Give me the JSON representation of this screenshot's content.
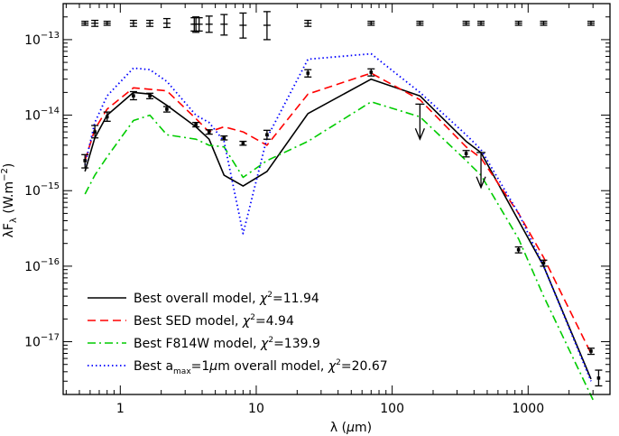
{
  "chart_data": {
    "type": "line",
    "title": "",
    "xlabel": "λ (μm)",
    "ylabel": "λF_λ (W.m^-2)",
    "xscale": "log",
    "yscale": "log",
    "xlim": [
      0.38,
      4000
    ],
    "ylim": [
      2e-18,
      3e-13
    ],
    "x_ticks": [
      {
        "v": 1,
        "label": "1"
      },
      {
        "v": 10,
        "label": "10"
      },
      {
        "v": 100,
        "label": "100"
      },
      {
        "v": 1000,
        "label": "1000"
      }
    ],
    "y_ticks": [
      {
        "v": 1e-17,
        "mant": "10",
        "exp": "−17"
      },
      {
        "v": 1e-16,
        "mant": "10",
        "exp": "−16"
      },
      {
        "v": 1e-15,
        "mant": "10",
        "exp": "−15"
      },
      {
        "v": 1e-14,
        "mant": "10",
        "exp": "−14"
      },
      {
        "v": 1e-13,
        "mant": "10",
        "exp": "−13"
      }
    ],
    "series": [
      {
        "name": "Best overall model",
        "chi_label": "χ",
        "chi_value": "=11.94",
        "color": "#000000",
        "dash": "",
        "x": [
          0.55,
          0.65,
          0.8,
          1.25,
          1.65,
          2.2,
          3.6,
          4.5,
          5.8,
          8.0,
          12,
          24,
          70,
          160,
          350,
          450,
          850,
          1300,
          2900
        ],
        "y": [
          1.8e-15,
          5e-15,
          1e-14,
          2e-14,
          1.9e-14,
          1.35e-14,
          7e-15,
          4.8e-15,
          1.6e-15,
          1.15e-15,
          1.8e-15,
          1.05e-14,
          3e-14,
          1.8e-14,
          4.5e-15,
          3.2e-15,
          4e-16,
          1e-16,
          3.2e-18
        ]
      },
      {
        "name": "Best SED model",
        "chi_label": "χ",
        "chi_value": "=4.94",
        "color": "#ff0000",
        "dash": "9,5",
        "x": [
          0.55,
          0.65,
          0.8,
          1.25,
          1.65,
          2.2,
          3.6,
          4.5,
          5.8,
          8.0,
          12,
          24,
          70,
          160,
          350,
          450,
          850,
          1300,
          2900
        ],
        "y": [
          2.5e-15,
          6.5e-15,
          1.2e-14,
          2.3e-14,
          2.2e-14,
          2.1e-14,
          9e-15,
          6e-15,
          7e-15,
          6e-15,
          4e-15,
          1.9e-14,
          3.6e-14,
          1.6e-14,
          3.8e-15,
          2.7e-15,
          5e-16,
          1.3e-16,
          7e-18
        ]
      },
      {
        "name": "Best F814W model",
        "chi_label": "χ",
        "chi_value": "=139.9",
        "color": "#00cc00",
        "dash": "9,4,2,4",
        "x": [
          0.55,
          0.65,
          0.8,
          1.25,
          1.65,
          2.2,
          3.6,
          4.5,
          5.8,
          8.0,
          12,
          24,
          70,
          160,
          350,
          450,
          850,
          1300,
          3000
        ],
        "y": [
          9e-16,
          1.6e-15,
          2.8e-15,
          8.5e-15,
          1e-14,
          5.5e-15,
          4.8e-15,
          4e-15,
          3.8e-15,
          1.5e-15,
          2.5e-15,
          4.5e-15,
          1.5e-14,
          9.5e-15,
          2.5e-15,
          1.6e-15,
          2.3e-16,
          4e-17,
          1.7e-18
        ]
      },
      {
        "name_prefix": "Best a",
        "name_sub": "max",
        "name_suffix": "=1",
        "name_unit_mu": "μ",
        "name_unit": "m overall model,",
        "name": "Best a_max=1μm overall model",
        "chi_label": "χ",
        "chi_value": "=20.67",
        "color": "#0000ff",
        "dash": "1.5,3",
        "x": [
          0.55,
          0.65,
          0.8,
          1.25,
          1.65,
          2.2,
          3.6,
          4.5,
          5.8,
          8.0,
          12,
          24,
          70,
          160,
          350,
          450,
          850,
          1300,
          2900
        ],
        "y": [
          2.2e-15,
          8e-15,
          1.8e-14,
          4.2e-14,
          4e-14,
          2.8e-14,
          1e-14,
          8e-15,
          4.5e-15,
          2.7e-16,
          5e-15,
          5.5e-14,
          6.5e-14,
          2e-14,
          5.5e-15,
          3.5e-15,
          5e-16,
          1e-16,
          3e-18
        ]
      }
    ],
    "observations": [
      {
        "x": 0.55,
        "y": 2.5e-15,
        "ylo": 2e-15,
        "yhi": 3e-15
      },
      {
        "x": 0.65,
        "y": 6e-15,
        "ylo": 5e-15,
        "yhi": 7.3e-15
      },
      {
        "x": 0.8,
        "y": 9.5e-15,
        "ylo": 8.3e-15,
        "yhi": 1.1e-14
      },
      {
        "x": 1.25,
        "y": 1.8e-14,
        "ylo": 1.6e-14,
        "yhi": 2.05e-14
      },
      {
        "x": 1.65,
        "y": 1.8e-14,
        "ylo": 1.65e-14,
        "yhi": 1.95e-14
      },
      {
        "x": 2.2,
        "y": 1.2e-14,
        "ylo": 1.1e-14,
        "yhi": 1.3e-14
      },
      {
        "x": 3.6,
        "y": 7.5e-15,
        "ylo": 7e-15,
        "yhi": 8e-15
      },
      {
        "x": 4.5,
        "y": 6e-15,
        "ylo": 5.6e-15,
        "yhi": 6.4e-15
      },
      {
        "x": 5.8,
        "y": 5e-15,
        "ylo": 4.7e-15,
        "yhi": 5.3e-15
      },
      {
        "x": 8.0,
        "y": 4.2e-15,
        "ylo": 4e-15,
        "yhi": 4.5e-15
      },
      {
        "x": 12,
        "y": 5.5e-15,
        "ylo": 4.8e-15,
        "yhi": 6.3e-15
      },
      {
        "x": 24,
        "y": 3.6e-14,
        "ylo": 3.2e-14,
        "yhi": 4e-14
      },
      {
        "x": 70,
        "y": 3.7e-14,
        "ylo": 3.3e-14,
        "yhi": 4.1e-14
      },
      {
        "x": 350,
        "y": 3.1e-15,
        "ylo": 2.8e-15,
        "yhi": 3.4e-15
      },
      {
        "x": 850,
        "y": 1.65e-16,
        "ylo": 1.5e-16,
        "yhi": 1.8e-16
      },
      {
        "x": 1300,
        "y": 1.1e-16,
        "ylo": 1e-16,
        "yhi": 1.2e-16
      },
      {
        "x": 2900,
        "y": 7.5e-18,
        "ylo": 6.8e-18,
        "yhi": 8.2e-18
      },
      {
        "x": 3300,
        "y": 3.3e-18,
        "ylo": 2.6e-18,
        "yhi": 4.2e-18
      }
    ],
    "upper_limits": [
      {
        "x": 160,
        "y": 1.4e-14,
        "to": 4.8e-15
      },
      {
        "x": 450,
        "y": 3.2e-15,
        "to": 1.1e-15
      }
    ],
    "top_error_bars": [
      {
        "x": 0.55,
        "y": 1.65e-13,
        "ylo": 1.55e-13,
        "yhi": 1.75e-13
      },
      {
        "x": 0.65,
        "y": 1.65e-13,
        "ylo": 1.5e-13,
        "yhi": 1.8e-13
      },
      {
        "x": 0.8,
        "y": 1.65e-13,
        "ylo": 1.55e-13,
        "yhi": 1.75e-13
      },
      {
        "x": 1.25,
        "y": 1.65e-13,
        "ylo": 1.5e-13,
        "yhi": 1.8e-13
      },
      {
        "x": 1.65,
        "y": 1.65e-13,
        "ylo": 1.5e-13,
        "yhi": 1.8e-13
      },
      {
        "x": 2.2,
        "y": 1.65e-13,
        "ylo": 1.45e-13,
        "yhi": 1.9e-13
      },
      {
        "x": 3.5,
        "y": 1.6e-13,
        "ylo": 1.3e-13,
        "yhi": 1.95e-13
      },
      {
        "x": 3.6,
        "y": 1.6e-13,
        "ylo": 1.25e-13,
        "yhi": 2e-13
      },
      {
        "x": 3.8,
        "y": 1.6e-13,
        "ylo": 1.3e-13,
        "yhi": 1.95e-13
      },
      {
        "x": 4.5,
        "y": 1.6e-13,
        "ylo": 1.25e-13,
        "yhi": 2.05e-13
      },
      {
        "x": 5.8,
        "y": 1.6e-13,
        "ylo": 1.15e-13,
        "yhi": 2.15e-13
      },
      {
        "x": 8.0,
        "y": 1.55e-13,
        "ylo": 1.05e-13,
        "yhi": 2.25e-13
      },
      {
        "x": 12,
        "y": 1.55e-13,
        "ylo": 1e-13,
        "yhi": 2.35e-13
      },
      {
        "x": 24,
        "y": 1.65e-13,
        "ylo": 1.5e-13,
        "yhi": 1.8e-13
      },
      {
        "x": 70,
        "y": 1.65e-13,
        "ylo": 1.55e-13,
        "yhi": 1.75e-13
      },
      {
        "x": 160,
        "y": 1.65e-13,
        "ylo": 1.55e-13,
        "yhi": 1.75e-13
      },
      {
        "x": 350,
        "y": 1.65e-13,
        "ylo": 1.55e-13,
        "yhi": 1.75e-13
      },
      {
        "x": 450,
        "y": 1.65e-13,
        "ylo": 1.55e-13,
        "yhi": 1.75e-13
      },
      {
        "x": 850,
        "y": 1.65e-13,
        "ylo": 1.55e-13,
        "yhi": 1.75e-13
      },
      {
        "x": 1300,
        "y": 1.65e-13,
        "ylo": 1.55e-13,
        "yhi": 1.75e-13
      },
      {
        "x": 2900,
        "y": 1.65e-13,
        "ylo": 1.55e-13,
        "yhi": 1.75e-13
      }
    ],
    "legend_placement": "bottom-left"
  },
  "labels": {
    "xlabel_lambda": "λ",
    "xlabel_open": " (",
    "xlabel_mu": "μ",
    "xlabel_close": "m)",
    "ylabel_lambda": "λF",
    "ylabel_sub": "λ",
    "ylabel_units": " (W.m",
    "ylabel_exp": "−2",
    "ylabel_close": ")",
    "chi_sup": "2"
  }
}
